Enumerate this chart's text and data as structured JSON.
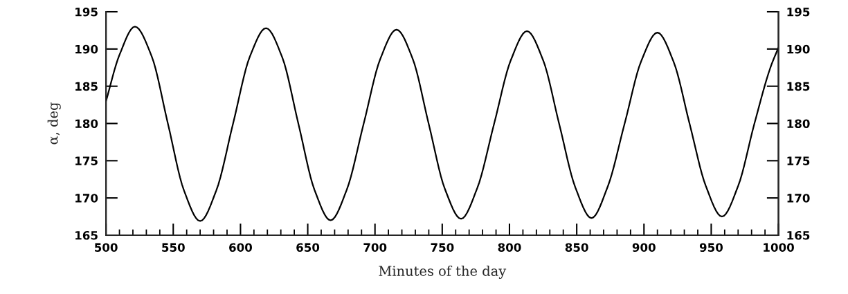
{
  "chart_data": {
    "type": "line",
    "xlabel": "Minutes of the day",
    "ylabel": "α, deg",
    "x": [
      500,
      510,
      521.5,
      534,
      546,
      558,
      570,
      582,
      594.5,
      607,
      619,
      631,
      643,
      655,
      667,
      679,
      691.5,
      704,
      716,
      728,
      740,
      752,
      764,
      776,
      788.5,
      801,
      813,
      825,
      837,
      849,
      861,
      873,
      885.5,
      898,
      910,
      922,
      934,
      946,
      958,
      970,
      982,
      994,
      1000
    ],
    "series": [
      {
        "color": "#000000",
        "values": [
          183.0,
          189.2,
          193.0,
          189.0,
          180.0,
          171.0,
          166.9,
          171.0,
          180.0,
          189.0,
          192.8,
          188.9,
          180.0,
          171.1,
          167.0,
          171.1,
          179.9,
          188.7,
          192.6,
          188.7,
          179.9,
          171.2,
          167.2,
          171.3,
          179.9,
          188.5,
          192.4,
          188.5,
          179.9,
          171.4,
          167.3,
          171.5,
          179.9,
          188.4,
          192.2,
          188.3,
          179.9,
          171.6,
          167.5,
          171.6,
          179.9,
          187.5,
          190.2
        ]
      }
    ],
    "xlim": [
      500,
      1000
    ],
    "xticks": [
      500,
      550,
      600,
      650,
      700,
      750,
      800,
      850,
      900,
      950,
      1000
    ],
    "ylim": [
      165,
      195
    ],
    "yticks": [
      165,
      170,
      175,
      180,
      185,
      190,
      195
    ],
    "y2lim": [
      165,
      195
    ],
    "y2ticks": [
      165,
      170,
      175,
      180,
      185,
      190,
      195
    ]
  }
}
